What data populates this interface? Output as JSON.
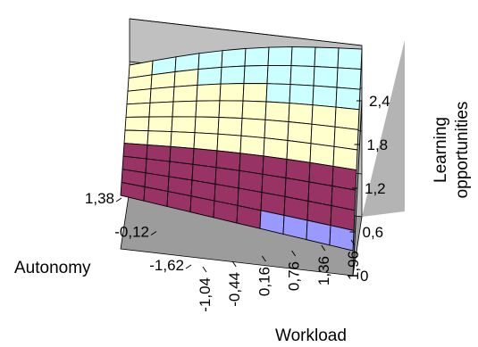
{
  "chart_data": {
    "type": "surface",
    "title": "",
    "xlabel": "Workload",
    "ylabel": "Autonomy",
    "zlabel": "Learning opportunities",
    "zlabel_lines": [
      "Learning",
      "opportunities"
    ],
    "x_ticks": [
      "-1,04",
      "-0,44",
      "0,16",
      "0,76",
      "1,36",
      "1,96"
    ],
    "y_ticks": [
      "1,38",
      "-0,12",
      "-1,62"
    ],
    "z_ticks": [
      "0",
      "0,6",
      "1,2",
      "1,8",
      "2,4"
    ],
    "zlim": [
      0,
      2.4
    ],
    "band_step": 0.6,
    "band_colors": [
      "#9999FF",
      "#993366",
      "#FFFFCC",
      "#CCFFFF"
    ],
    "note": "",
    "grid": {
      "x_min": -1.04,
      "x_max": 1.96,
      "y_min": -1.62,
      "y_max": 1.38,
      "x_steps": 10,
      "y_steps": 10
    },
    "surface_corners": {
      "x-1.04_y1.38": 1.75,
      "x1.96_y1.38": 2.35,
      "x-1.04_y-1.62": 0.75,
      "x1.96_y-1.62": 0.35
    },
    "gridlines": true
  }
}
